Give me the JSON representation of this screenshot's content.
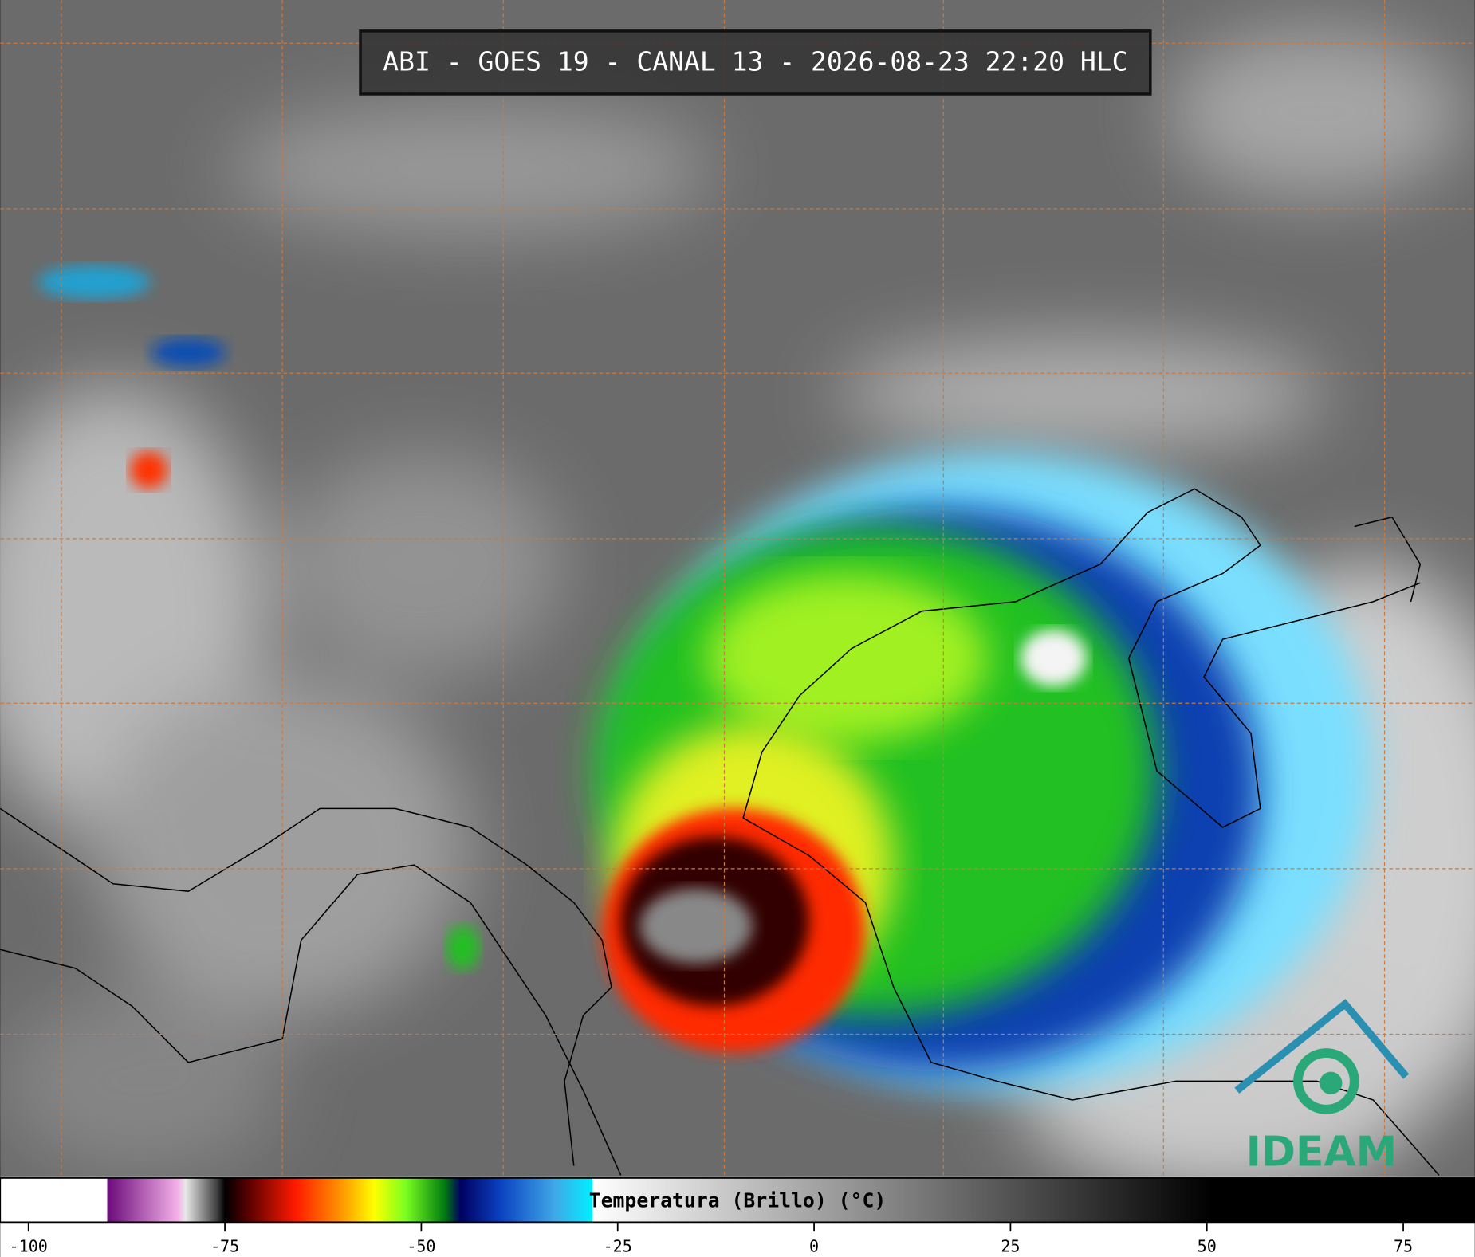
{
  "header": {
    "title": "ABI - GOES 19 - CANAL 13 - 2026-08-23 22:20 HLC"
  },
  "colorbar": {
    "label": "Temperatura (Brillo) (°C)",
    "lim": [
      -103.6,
      84.1
    ],
    "ticks": [
      -100,
      -75,
      -50,
      -25,
      0,
      25,
      50,
      75
    ],
    "stops": [
      {
        "value": -90,
        "color": "#ffffff"
      },
      {
        "value": -90,
        "color": "#6a0a7a"
      },
      {
        "value": -81,
        "color": "#f4b0e8"
      },
      {
        "value": -80,
        "color": "#e8e8e8"
      },
      {
        "value": -76,
        "color": "#404040"
      },
      {
        "value": -75,
        "color": "#000000"
      },
      {
        "value": -72,
        "color": "#5a0000"
      },
      {
        "value": -66,
        "color": "#ff1a00"
      },
      {
        "value": -60,
        "color": "#ff9a00"
      },
      {
        "value": -56,
        "color": "#ffff00"
      },
      {
        "value": -52,
        "color": "#7aff20"
      },
      {
        "value": -47,
        "color": "#007a10"
      },
      {
        "value": -45,
        "color": "#000060"
      },
      {
        "value": -40,
        "color": "#0a40c0"
      },
      {
        "value": -33,
        "color": "#40a8e8"
      },
      {
        "value": -28.2,
        "color": "#00f0ff"
      },
      {
        "value": -28.2,
        "color": "#ffffff"
      },
      {
        "value": 50.7,
        "color": "#000000"
      }
    ]
  },
  "logo": {
    "text": "IDEAM"
  }
}
